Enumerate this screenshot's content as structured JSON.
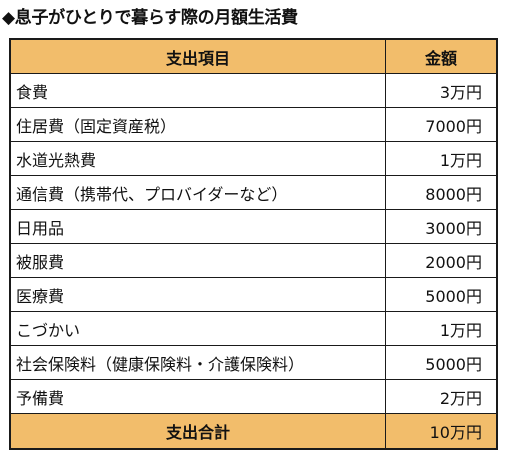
{
  "title": "◆息子がひとりで暮らす際の月額生活費",
  "table": {
    "headers": {
      "item": "支出項目",
      "amount": "金額"
    },
    "rows": [
      {
        "item": "食費",
        "amount": "3万円"
      },
      {
        "item": "住居費（固定資産税）",
        "amount": "7000円"
      },
      {
        "item": "水道光熱費",
        "amount": "1万円"
      },
      {
        "item": "通信費（携帯代、プロバイダーなど）",
        "amount": "8000円"
      },
      {
        "item": "日用品",
        "amount": "3000円"
      },
      {
        "item": "被服費",
        "amount": "2000円"
      },
      {
        "item": "医療費",
        "amount": "5000円"
      },
      {
        "item": "こづかい",
        "amount": "1万円"
      },
      {
        "item": "社会保険料（健康保険料・介護保険料）",
        "amount": "5000円"
      },
      {
        "item": "予備費",
        "amount": "2万円"
      }
    ],
    "total": {
      "item": "支出合計",
      "amount": "10万円"
    }
  },
  "colors": {
    "header_bg": "#f2bd6b",
    "border": "#1a1a1a"
  }
}
